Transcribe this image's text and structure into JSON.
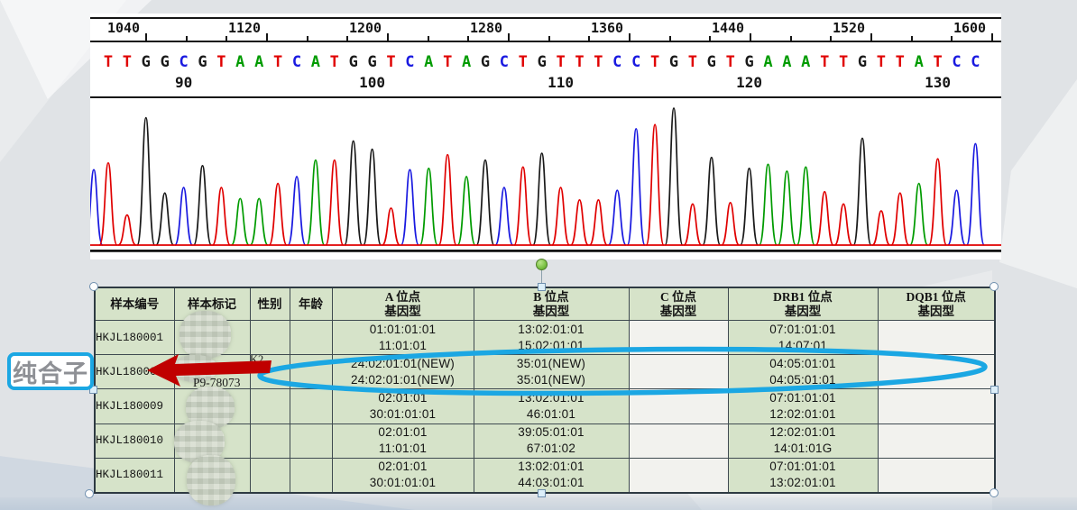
{
  "chromatogram": {
    "ruler_labels": [
      "1040",
      "1120",
      "1200",
      "1280",
      "1360",
      "1440",
      "1520",
      "1600"
    ],
    "sequence": "TTGGCGTAATCATGGTCATAGCTGTTTCCTGTGTGAAATTGTTATCC",
    "base_colors": {
      "A": "#009b00",
      "C": "#1a1ae0",
      "G": "#1a1a1a",
      "T": "#e00000"
    },
    "position_labels": [
      {
        "text": "90",
        "index": 4
      },
      {
        "text": "100",
        "index": 14
      },
      {
        "text": "110",
        "index": 24
      },
      {
        "text": "120",
        "index": 34
      },
      {
        "text": "130",
        "index": 44
      }
    ],
    "peak_heights": [
      0.6,
      0.22,
      0.93,
      0.38,
      0.42,
      0.58,
      0.42,
      0.34,
      0.34,
      0.45,
      0.5,
      0.62,
      0.62,
      0.76,
      0.7,
      0.27,
      0.55,
      0.56,
      0.66,
      0.5,
      0.62,
      0.42,
      0.57,
      0.67,
      0.42,
      0.33,
      0.33,
      0.4,
      0.85,
      0.88,
      1.0,
      0.3,
      0.64,
      0.31,
      0.56,
      0.59,
      0.54,
      0.57,
      0.39,
      0.3,
      0.78,
      0.25,
      0.38,
      0.45,
      0.63,
      0.4,
      0.74
    ],
    "baseline_color": "#e00000"
  },
  "annotation": {
    "homozygote_label": "纯合子",
    "accent_blue": "#1ba7e3",
    "arrow_red": "#c00000"
  },
  "table": {
    "headers": [
      {
        "label": "样本编号"
      },
      {
        "label": "样本标记"
      },
      {
        "label": "性别"
      },
      {
        "label": "年龄"
      },
      {
        "label": "A 位点",
        "label2": "基因型"
      },
      {
        "label": "B 位点",
        "label2": "基因型"
      },
      {
        "label": "C 位点",
        "label2": "基因型"
      },
      {
        "label": "DRB1 位点",
        "label2": "基因型"
      },
      {
        "label": "DQB1 位点",
        "label2": "基因型"
      }
    ],
    "rows": [
      {
        "sample_id": "HKJL180001",
        "label1": "",
        "label2": "",
        "sex": "",
        "age": "",
        "a1": "01:01:01:01",
        "a2": "11:01:01",
        "b1": "13:02:01:01",
        "b2": "15:02:01:01",
        "c1": "",
        "c2": "",
        "d1": "07:01:01:01",
        "d2": "14:07:01",
        "q1": "",
        "q2": ""
      },
      {
        "sample_id": "HKJL18000",
        "label1": "K2",
        "label2": "P9-78073",
        "sex": "",
        "age": "",
        "a1": "24:02:01:01(NEW)",
        "a2": "24:02:01:01(NEW)",
        "b1": "35:01(NEW)",
        "b2": "35:01(NEW)",
        "c1": "",
        "c2": "",
        "d1": "04:05:01:01",
        "d2": "04:05:01:01",
        "q1": "",
        "q2": ""
      },
      {
        "sample_id": "HKJL180009",
        "label1": "",
        "label2": "",
        "sex": "",
        "age": "",
        "a1": "02:01:01",
        "a2": "30:01:01:01",
        "b1": "13:02:01:01",
        "b2": "46:01:01",
        "c1": "",
        "c2": "",
        "d1": "07:01:01:01",
        "d2": "12:02:01:01",
        "q1": "",
        "q2": ""
      },
      {
        "sample_id": "HKJL180010",
        "label1": "",
        "label2": "",
        "sex": "",
        "age": "",
        "a1": "02:01:01",
        "a2": "11:01:01",
        "b1": "39:05:01:01",
        "b2": "67:01:02",
        "c1": "",
        "c2": "",
        "d1": "12:02:01:01",
        "d2": "14:01:01G",
        "q1": "",
        "q2": ""
      },
      {
        "sample_id": "HKJL180011",
        "label1": "",
        "label2": "",
        "sex": "",
        "age": "",
        "a1": "02:01:01",
        "a2": "30:01:01:01",
        "b1": "13:02:01:01",
        "b2": "44:03:01:01",
        "c1": "",
        "c2": "",
        "d1": "07:01:01:01",
        "d2": "13:02:01:01",
        "q1": "",
        "q2": ""
      }
    ],
    "cell_green": "#d6e3c9",
    "cell_light": "#f2f2ee"
  }
}
